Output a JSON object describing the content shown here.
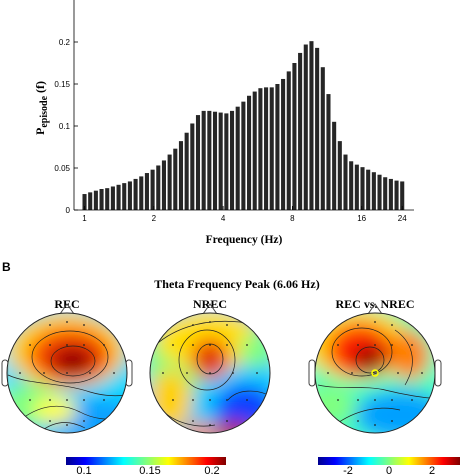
{
  "panel_a": {
    "chart_data": {
      "type": "bar",
      "xlabel": "Frequency (Hz)",
      "ylabel_main": "P",
      "ylabel_sub": "episode",
      "ylabel_tail": "(f)",
      "ylim": [
        0,
        0.25
      ],
      "yticks": [
        0,
        0.05,
        0.1,
        0.15,
        0.2
      ],
      "ytick_labels": [
        "0",
        "0.05",
        "0.1",
        "0.15",
        "0.2"
      ],
      "x_scale": "log2",
      "xlim": [
        0.9,
        27
      ],
      "xticks": [
        1,
        2,
        4,
        8,
        16,
        24
      ],
      "xtick_labels": [
        "1",
        "2",
        "4",
        "8",
        "16",
        "24"
      ],
      "bar_color": "#262626",
      "values": [
        0.019,
        0.021,
        0.023,
        0.025,
        0.026,
        0.028,
        0.03,
        0.032,
        0.034,
        0.037,
        0.04,
        0.044,
        0.048,
        0.053,
        0.059,
        0.066,
        0.073,
        0.082,
        0.092,
        0.103,
        0.113,
        0.118,
        0.118,
        0.117,
        0.116,
        0.115,
        0.118,
        0.123,
        0.129,
        0.136,
        0.141,
        0.145,
        0.146,
        0.146,
        0.15,
        0.156,
        0.165,
        0.175,
        0.187,
        0.197,
        0.201,
        0.193,
        0.17,
        0.138,
        0.105,
        0.082,
        0.066,
        0.058,
        0.054,
        0.051,
        0.048,
        0.045,
        0.042,
        0.039,
        0.037,
        0.035,
        0.034
      ]
    }
  },
  "panel_b": {
    "label": "B",
    "title": "Theta Frequency Peak  (6.06 Hz)",
    "maps": [
      {
        "title": "REC"
      },
      {
        "title": "NREC"
      },
      {
        "title": "REC vs. NREC"
      }
    ],
    "colorbar1": {
      "labels": [
        "0.1",
        "0.15",
        "0.2"
      ],
      "range": [
        0.08,
        0.22
      ]
    },
    "colorbar2": {
      "labels": [
        "-2",
        "0",
        "2"
      ],
      "range": [
        -2.8,
        2.8
      ]
    },
    "colors": {
      "low": "#00008f",
      "mid": "#7fff7f",
      "high": "#800000",
      "contour": "#202020",
      "marker": "#ffff00"
    }
  }
}
